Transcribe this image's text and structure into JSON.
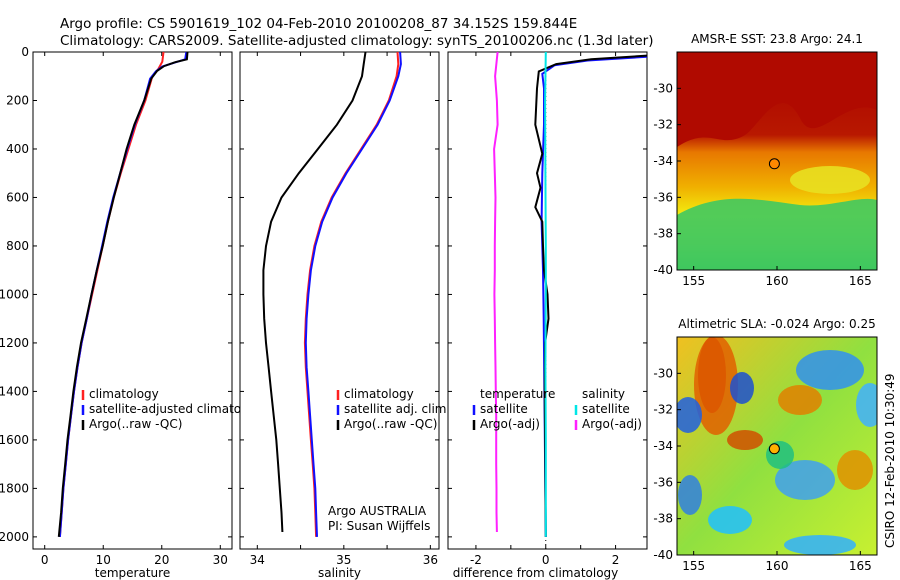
{
  "header": {
    "line1": "Argo profile: CS 5901619_102 04-Feb-2010 20100208_87 34.152S 159.844E",
    "line2": "Climatology: CARS2009. Satellite-adjusted climatology: synTS_20100206.nc (1.3d later)"
  },
  "colors": {
    "climatology": "#ff2020",
    "satellite": "#1010ff",
    "argo": "#000000",
    "sat_salinity": "#00e6e6",
    "argo_salinity_diff": "#ff20ff"
  },
  "chart_data": [
    {
      "type": "line",
      "xlabel": "temperature",
      "ylabel": "",
      "xlim": [
        -2,
        32
      ],
      "ylim": [
        2050,
        0
      ],
      "x_ticks": [
        0,
        10,
        20,
        30
      ],
      "y_ticks": [
        0,
        200,
        400,
        600,
        800,
        1000,
        1200,
        1400,
        1600,
        1800,
        2000
      ],
      "legend": [
        "climatology",
        "satellite-adjusted climatology",
        "Argo(..raw -QC)"
      ],
      "series": [
        {
          "name": "climatology",
          "color": "climatology",
          "points": [
            [
              20.3,
              0
            ],
            [
              20.1,
              40
            ],
            [
              19.4,
              70
            ],
            [
              18.4,
              100
            ],
            [
              17.2,
              200
            ],
            [
              15.6,
              300
            ],
            [
              14.3,
              400
            ],
            [
              13.0,
              500
            ],
            [
              11.8,
              600
            ],
            [
              10.8,
              700
            ],
            [
              9.9,
              800
            ],
            [
              9.0,
              900
            ],
            [
              8.1,
              1000
            ],
            [
              7.2,
              1100
            ],
            [
              6.3,
              1200
            ],
            [
              5.6,
              1300
            ],
            [
              5.0,
              1400
            ],
            [
              4.5,
              1500
            ],
            [
              4.0,
              1600
            ],
            [
              3.6,
              1700
            ],
            [
              3.2,
              1800
            ],
            [
              2.9,
              1900
            ],
            [
              2.6,
              2000
            ]
          ]
        },
        {
          "name": "satellite-adjusted climatology",
          "color": "satellite",
          "points": [
            [
              24.2,
              0
            ],
            [
              24.0,
              30
            ],
            [
              22.0,
              45
            ],
            [
              20.1,
              60
            ],
            [
              19.0,
              80
            ],
            [
              18.0,
              110
            ],
            [
              17.0,
              200
            ],
            [
              15.4,
              300
            ],
            [
              14.1,
              400
            ],
            [
              12.9,
              500
            ],
            [
              11.7,
              600
            ],
            [
              10.7,
              700
            ],
            [
              9.8,
              800
            ],
            [
              8.9,
              900
            ],
            [
              8.0,
              1000
            ],
            [
              7.2,
              1100
            ],
            [
              6.3,
              1200
            ],
            [
              5.6,
              1300
            ],
            [
              5.0,
              1400
            ],
            [
              4.5,
              1500
            ],
            [
              4.0,
              1600
            ],
            [
              3.6,
              1700
            ],
            [
              3.2,
              1800
            ],
            [
              2.9,
              1900
            ],
            [
              2.6,
              2000
            ]
          ]
        },
        {
          "name": "Argo(..raw -QC)",
          "color": "argo",
          "points": [
            [
              24.4,
              0
            ],
            [
              24.3,
              30
            ],
            [
              22.3,
              42
            ],
            [
              20.4,
              58
            ],
            [
              19.2,
              78
            ],
            [
              18.2,
              110
            ],
            [
              17.0,
              200
            ],
            [
              15.3,
              300
            ],
            [
              14.0,
              400
            ],
            [
              12.9,
              500
            ],
            [
              11.8,
              600
            ],
            [
              10.8,
              700
            ],
            [
              9.9,
              800
            ],
            [
              8.9,
              900
            ],
            [
              8.0,
              1000
            ],
            [
              7.1,
              1100
            ],
            [
              6.2,
              1200
            ],
            [
              5.5,
              1300
            ],
            [
              4.9,
              1400
            ],
            [
              4.4,
              1500
            ],
            [
              3.9,
              1600
            ],
            [
              3.5,
              1700
            ],
            [
              3.1,
              1800
            ],
            [
              2.8,
              1900
            ],
            [
              2.4,
              2000
            ]
          ]
        }
      ]
    },
    {
      "type": "line",
      "xlabel": "salinity",
      "ylabel": "",
      "xlim": [
        33.8,
        36.1
      ],
      "ylim": [
        2050,
        0
      ],
      "x_ticks": [
        34,
        34.5,
        35,
        35.5,
        36
      ],
      "x_tick_labels": [
        "34",
        "",
        "35",
        "",
        "36"
      ],
      "y_ticks": [
        0,
        200,
        400,
        600,
        800,
        1000,
        1200,
        1400,
        1600,
        1800,
        2000
      ],
      "legend": [
        "climatology",
        "satellite adj. clim.",
        "Argo(..raw -QC)"
      ],
      "annotation": [
        "Argo AUSTRALIA",
        "PI: Susan Wijffels"
      ],
      "series": [
        {
          "name": "climatology",
          "color": "climatology",
          "points": [
            [
              35.62,
              0
            ],
            [
              35.63,
              50
            ],
            [
              35.61,
              100
            ],
            [
              35.52,
              200
            ],
            [
              35.38,
              300
            ],
            [
              35.2,
              400
            ],
            [
              35.02,
              500
            ],
            [
              34.86,
              600
            ],
            [
              34.74,
              700
            ],
            [
              34.66,
              800
            ],
            [
              34.61,
              900
            ],
            [
              34.58,
              1000
            ],
            [
              34.56,
              1100
            ],
            [
              34.55,
              1200
            ],
            [
              34.56,
              1300
            ],
            [
              34.58,
              1400
            ],
            [
              34.6,
              1500
            ],
            [
              34.62,
              1600
            ],
            [
              34.64,
              1700
            ],
            [
              34.66,
              1800
            ],
            [
              34.67,
              1900
            ],
            [
              34.68,
              2000
            ]
          ]
        },
        {
          "name": "satellite adj. clim.",
          "color": "satellite",
          "points": [
            [
              35.65,
              0
            ],
            [
              35.66,
              50
            ],
            [
              35.63,
              100
            ],
            [
              35.53,
              200
            ],
            [
              35.39,
              300
            ],
            [
              35.21,
              400
            ],
            [
              35.03,
              500
            ],
            [
              34.87,
              600
            ],
            [
              34.75,
              700
            ],
            [
              34.67,
              800
            ],
            [
              34.62,
              900
            ],
            [
              34.59,
              1000
            ],
            [
              34.57,
              1100
            ],
            [
              34.56,
              1200
            ],
            [
              34.57,
              1300
            ],
            [
              34.59,
              1400
            ],
            [
              34.61,
              1500
            ],
            [
              34.63,
              1600
            ],
            [
              34.65,
              1700
            ],
            [
              34.67,
              1800
            ],
            [
              34.68,
              1900
            ],
            [
              34.69,
              2000
            ]
          ]
        },
        {
          "name": "Argo(..raw -QC)",
          "color": "argo",
          "points": [
            [
              35.25,
              0
            ],
            [
              35.23,
              50
            ],
            [
              35.21,
              100
            ],
            [
              35.1,
              200
            ],
            [
              34.92,
              300
            ],
            [
              34.7,
              400
            ],
            [
              34.48,
              500
            ],
            [
              34.28,
              600
            ],
            [
              34.16,
              700
            ],
            [
              34.1,
              800
            ],
            [
              34.07,
              900
            ],
            [
              34.07,
              1000
            ],
            [
              34.08,
              1100
            ],
            [
              34.1,
              1200
            ],
            [
              34.13,
              1300
            ],
            [
              34.16,
              1400
            ],
            [
              34.19,
              1500
            ],
            [
              34.22,
              1600
            ],
            [
              34.24,
              1700
            ],
            [
              34.26,
              1800
            ],
            [
              34.28,
              1900
            ],
            [
              34.29,
              1980
            ]
          ]
        }
      ]
    },
    {
      "type": "line",
      "xlabel": "difference from climatology",
      "ylabel": "",
      "xlim": [
        -2.8,
        2.9
      ],
      "ylim": [
        2050,
        0
      ],
      "x_ticks": [
        -2,
        -1,
        0,
        1,
        2
      ],
      "x_tick_labels": [
        "-2",
        "",
        "0",
        "",
        "2"
      ],
      "y_ticks": [
        0,
        200,
        400,
        600,
        800,
        1000,
        1200,
        1400,
        1600,
        1800,
        2000
      ],
      "legend_left": [
        "temperature",
        "satellite",
        "Argo(-adj)"
      ],
      "legend_right": [
        "salinity",
        "satellite",
        "Argo(-adj)"
      ],
      "series": [
        {
          "name": "temperature satellite",
          "color": "satellite",
          "points": [
            [
              2.9,
              20
            ],
            [
              1.2,
              35
            ],
            [
              0.25,
              55
            ],
            [
              -0.1,
              90
            ],
            [
              -0.05,
              150
            ],
            [
              -0.05,
              300
            ],
            [
              -0.1,
              500
            ],
            [
              -0.12,
              700
            ],
            [
              -0.08,
              900
            ],
            [
              -0.06,
              1100
            ],
            [
              -0.04,
              1400
            ],
            [
              -0.02,
              1700
            ],
            [
              0,
              2000
            ]
          ]
        },
        {
          "name": "temperature Argo(-adj)",
          "color": "argo",
          "points": [
            [
              2.9,
              15
            ],
            [
              1.3,
              30
            ],
            [
              0.3,
              50
            ],
            [
              -0.2,
              80
            ],
            [
              -0.25,
              150
            ],
            [
              -0.3,
              300
            ],
            [
              -0.1,
              420
            ],
            [
              -0.25,
              500
            ],
            [
              -0.15,
              560
            ],
            [
              -0.3,
              640
            ],
            [
              -0.1,
              700
            ],
            [
              -0.08,
              800
            ],
            [
              -0.05,
              900
            ],
            [
              0.05,
              1000
            ],
            [
              0.08,
              1100
            ],
            [
              -0.02,
              1200
            ],
            [
              -0.03,
              1400
            ],
            [
              -0.02,
              1600
            ],
            [
              -0.01,
              1800
            ],
            [
              0,
              2000
            ]
          ]
        },
        {
          "name": "salinity satellite",
          "color": "sat_salinity",
          "points": [
            [
              0,
              0
            ],
            [
              -0.02,
              200
            ],
            [
              -0.01,
              500
            ],
            [
              0,
              800
            ],
            [
              0,
              1000
            ],
            [
              -0.01,
              1300
            ],
            [
              0,
              1600
            ],
            [
              0,
              1800
            ],
            [
              0,
              2000
            ]
          ]
        },
        {
          "name": "salinity Argo(-adj)",
          "color": "argo_salinity_diff",
          "points": [
            [
              -1.38,
              0
            ],
            [
              -1.45,
              100
            ],
            [
              -1.4,
              200
            ],
            [
              -1.38,
              300
            ],
            [
              -1.48,
              400
            ],
            [
              -1.46,
              500
            ],
            [
              -1.44,
              600
            ],
            [
              -1.45,
              700
            ],
            [
              -1.46,
              800
            ],
            [
              -1.46,
              900
            ],
            [
              -1.47,
              1000
            ],
            [
              -1.46,
              1100
            ],
            [
              -1.45,
              1200
            ],
            [
              -1.44,
              1300
            ],
            [
              -1.43,
              1400
            ],
            [
              -1.42,
              1500
            ],
            [
              -1.42,
              1600
            ],
            [
              -1.42,
              1700
            ],
            [
              -1.41,
              1800
            ],
            [
              -1.41,
              1900
            ],
            [
              -1.4,
              1980
            ]
          ]
        }
      ]
    },
    {
      "type": "heatmap",
      "title": "AMSR-E SST: 23.8  Argo: 24.1",
      "xlim": [
        154,
        166
      ],
      "ylim": [
        -40,
        -28
      ],
      "x_ticks": [
        155,
        160,
        165
      ],
      "y_ticks": [
        -30,
        -32,
        -34,
        -36,
        -38,
        -40
      ],
      "marker": {
        "lon": 159.844,
        "lat": -34.152,
        "color": "#ff8800"
      }
    },
    {
      "type": "heatmap",
      "title": "Altimetric SLA: -0.024  Argo: 0.25",
      "xlim": [
        154,
        166
      ],
      "ylim": [
        -40,
        -28
      ],
      "x_ticks": [
        155,
        160,
        165
      ],
      "y_ticks": [
        -30,
        -32,
        -34,
        -36,
        -38,
        -40
      ],
      "marker": {
        "lon": 159.844,
        "lat": -34.152,
        "color": "#ffb000"
      }
    }
  ],
  "credit": "CSIRO 12-Feb-2010 10:30:49"
}
